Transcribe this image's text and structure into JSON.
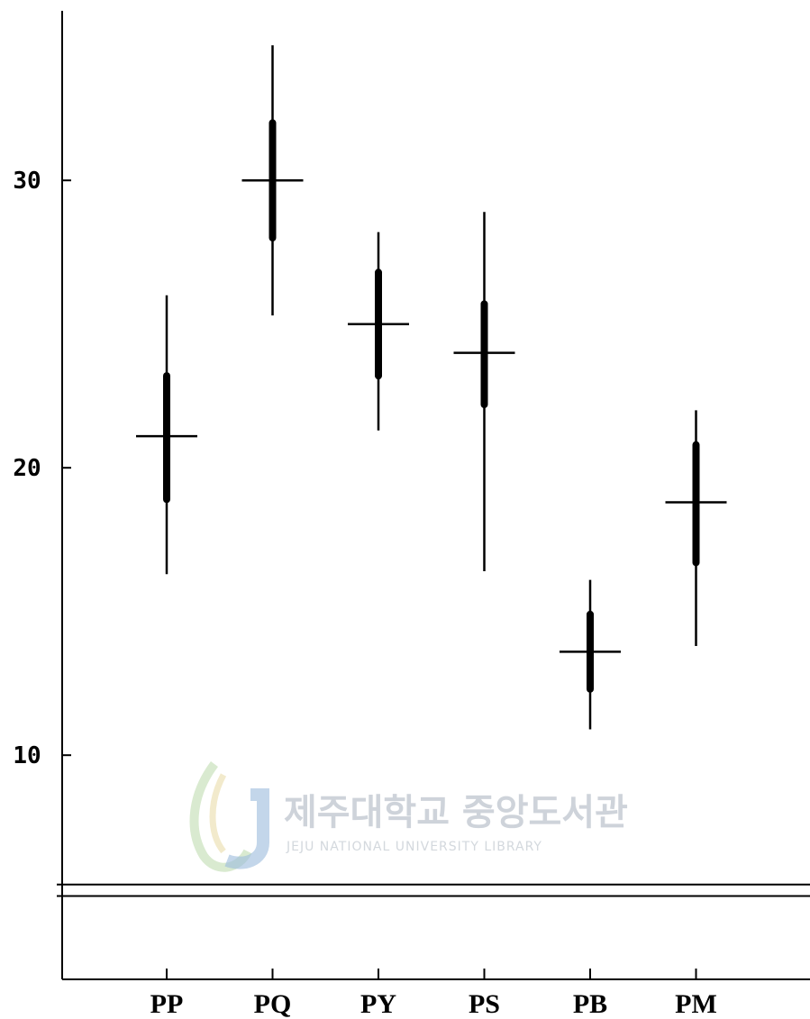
{
  "chart_data": {
    "type": "range-plot",
    "categories": [
      "PP",
      "PQ",
      "PY",
      "PS",
      "PB",
      "PM"
    ],
    "series": [
      {
        "mean": [
          21.1,
          30.0,
          25.0,
          24.0,
          13.6,
          18.8
        ],
        "box_low": [
          18.9,
          28.0,
          23.2,
          22.2,
          12.3,
          16.7
        ],
        "box_high": [
          23.2,
          32.0,
          26.8,
          25.7,
          14.9,
          20.8
        ],
        "min": [
          16.3,
          25.3,
          21.3,
          16.4,
          10.9,
          13.8
        ],
        "max": [
          26.0,
          34.7,
          28.2,
          28.9,
          16.1,
          22.0
        ]
      }
    ],
    "y_ticks": [
      "10",
      "20",
      "30"
    ],
    "y_tick_values": [
      10,
      20,
      30
    ],
    "ylim": [
      2.2,
      35.9
    ],
    "reference_lines": [
      5.5,
      5.1
    ],
    "xlabel": "",
    "ylabel": "",
    "grid": false
  },
  "watermark": {
    "title": "제주대학교 중앙도서관",
    "subtitle": "JEJU NATIONAL UNIVERSITY LIBRARY"
  },
  "colors": {
    "ink": "#000000",
    "watermark": "#c9cfd6"
  }
}
